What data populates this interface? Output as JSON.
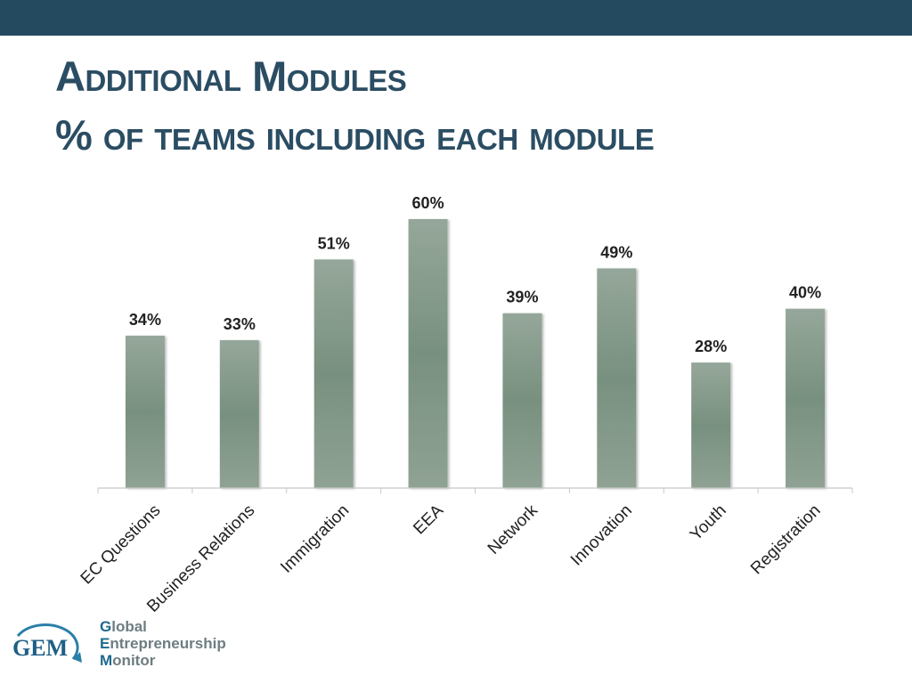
{
  "header": {
    "title_line1": "Additional Modules",
    "title_line2": "% of teams including each module"
  },
  "colors": {
    "top_bar": "#244a60",
    "title": "#2b4d63",
    "bar": "#7f9486",
    "axis": "#c8c8c8",
    "label": "#222222"
  },
  "chart_data": {
    "type": "bar",
    "categories": [
      "EC Questions",
      "Business Relations",
      "Immigration",
      "EEA",
      "Network",
      "Innovation",
      "Youth",
      "Registration"
    ],
    "values": [
      34,
      33,
      51,
      60,
      39,
      49,
      28,
      40
    ],
    "data_labels": [
      "34%",
      "33%",
      "51%",
      "60%",
      "39%",
      "49%",
      "28%",
      "40%"
    ],
    "ylim": [
      0,
      60
    ],
    "grid": false,
    "legend": "none"
  },
  "logo": {
    "mark": "GEM",
    "line1_first": "G",
    "line1_rest": "lobal",
    "line2_first": "E",
    "line2_rest": "ntrepreneurship",
    "line3_first": "M",
    "line3_rest": "onitor"
  }
}
